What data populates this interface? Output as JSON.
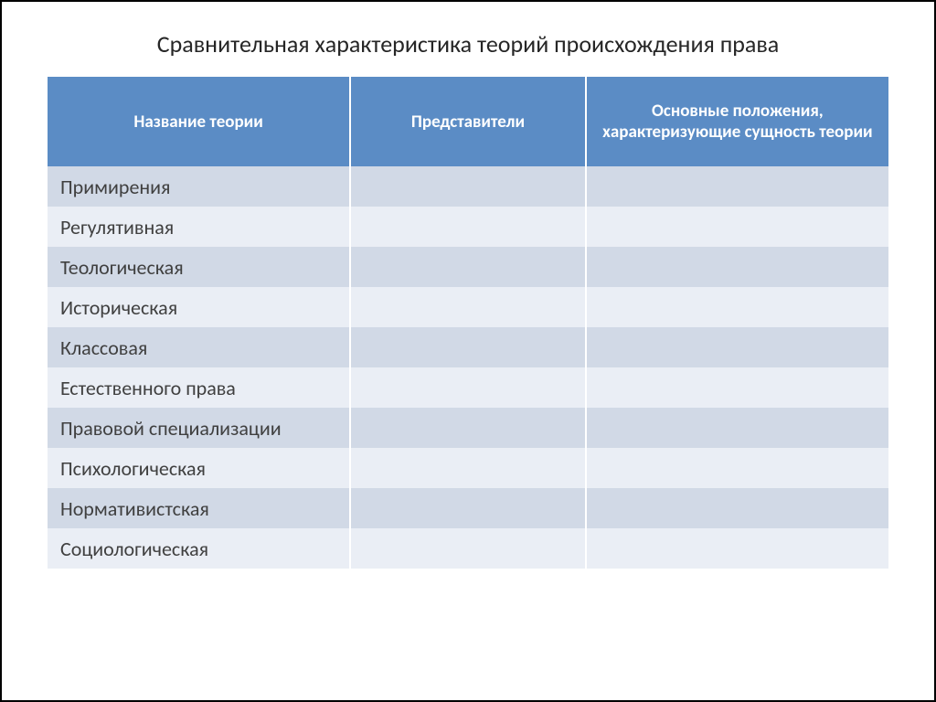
{
  "title": "Сравнительная характеристика теорий происхождения права",
  "table": {
    "columns": [
      "Название теории",
      "Представители",
      "Основные положения, характеризующие сущность теории"
    ],
    "rows": [
      [
        "Примирения",
        "",
        ""
      ],
      [
        "Регулятивная",
        "",
        ""
      ],
      [
        "Теологическая",
        "",
        ""
      ],
      [
        "Историческая",
        "",
        ""
      ],
      [
        "Классовая",
        "",
        ""
      ],
      [
        "Естественного права",
        "",
        ""
      ],
      [
        "Правовой специализации",
        "",
        ""
      ],
      [
        "Психологическая",
        "",
        ""
      ],
      [
        "Нормативистская",
        "",
        ""
      ],
      [
        "Социологическая",
        "",
        ""
      ]
    ],
    "header_bg": "#5b8cc5",
    "header_text_color": "#ffffff",
    "row_odd_bg": "#d1d9e6",
    "row_even_bg": "#eaeef5",
    "cell_text_color": "#404040",
    "title_fontsize": 26,
    "header_fontsize": 19,
    "cell_fontsize": 22,
    "column_widths": [
      "36%",
      "28%",
      "36%"
    ]
  }
}
